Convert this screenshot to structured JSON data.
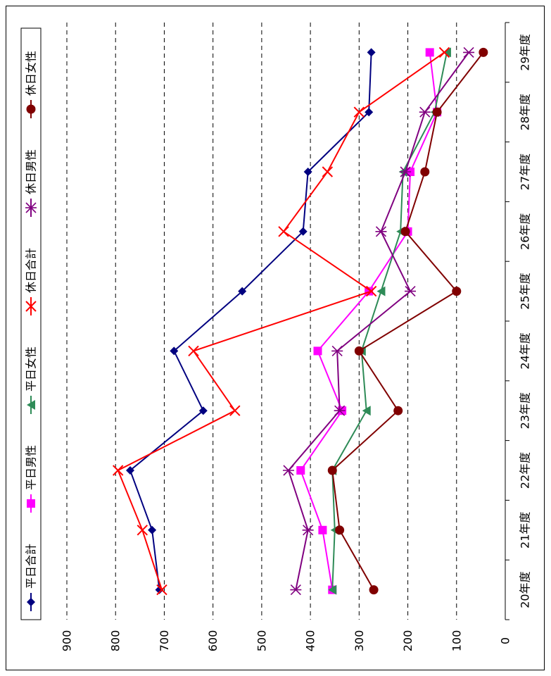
{
  "chart_data": {
    "type": "line",
    "orientation": "rotated-90",
    "categories": [
      "20年度",
      "21年度",
      "22年度",
      "23年度",
      "24年度",
      "25年度",
      "26年度",
      "27年度",
      "28年度",
      "29年度"
    ],
    "ylim": [
      0,
      900
    ],
    "yticks": [
      "0",
      "100",
      "200",
      "300",
      "400",
      "500",
      "600",
      "700",
      "800",
      "900"
    ],
    "grid": true,
    "legend_position": "left",
    "series": [
      {
        "name": "平日合計",
        "color": "#000080",
        "marker": "diamond",
        "values": [
          710,
          725,
          770,
          620,
          680,
          540,
          415,
          405,
          280,
          275
        ]
      },
      {
        "name": "平日男性",
        "color": "#ff00ff",
        "marker": "square",
        "values": [
          355,
          375,
          420,
          335,
          385,
          280,
          200,
          195,
          140,
          155
        ]
      },
      {
        "name": "平日女性",
        "color": "#2e8b57",
        "marker": "triangle",
        "values": [
          355,
          350,
          355,
          285,
          295,
          255,
          215,
          210,
          145,
          120
        ]
      },
      {
        "name": "休日合計",
        "color": "#ff0000",
        "marker": "x",
        "values": [
          705,
          745,
          795,
          555,
          640,
          275,
          455,
          365,
          300,
          125
        ]
      },
      {
        "name": "休日男性",
        "color": "#800080",
        "marker": "asterisk",
        "values": [
          430,
          405,
          445,
          340,
          345,
          195,
          255,
          205,
          165,
          75
        ]
      },
      {
        "name": "休日女性",
        "color": "#800000",
        "marker": "circle",
        "values": [
          270,
          340,
          355,
          220,
          300,
          100,
          205,
          165,
          140,
          45
        ]
      }
    ]
  }
}
